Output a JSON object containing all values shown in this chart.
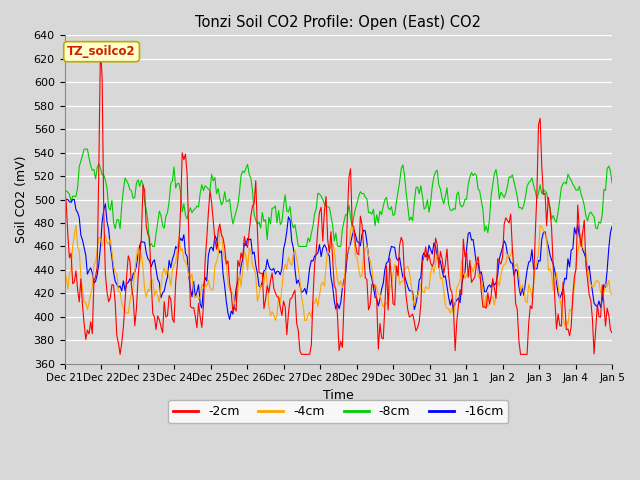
{
  "title": "Tonzi Soil CO2 Profile: Open (East) CO2",
  "xlabel": "Time",
  "ylabel": "Soil CO2 (mV)",
  "ylim": [
    360,
    640
  ],
  "bg_color": "#d8d8d8",
  "legend_label": "TZ_soilco2",
  "legend_bg": "#ffffcc",
  "legend_edge": "#bbaa00",
  "x_labels": [
    "Dec 21",
    "Dec 22",
    "Dec 23",
    "Dec 24",
    "Dec 25",
    "Dec 26",
    "Dec 27",
    "Dec 28",
    "Dec 29",
    "Dec 30",
    "Dec 31",
    "Jan 1",
    "Jan 2",
    "Jan 3",
    "Jan 4",
    "Jan 5"
  ],
  "series_colors": [
    "#ff0000",
    "#ffa500",
    "#00cc00",
    "#0000ff"
  ],
  "series_labels": [
    "-2cm",
    "-4cm",
    "-8cm",
    "-16cm"
  ],
  "n_points": 336,
  "figwidth": 6.4,
  "figheight": 4.8,
  "dpi": 100
}
